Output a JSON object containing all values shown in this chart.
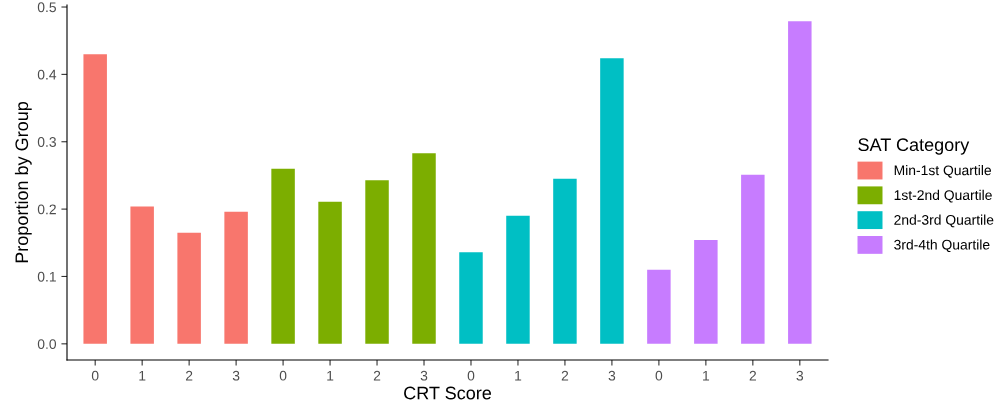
{
  "chart_data": {
    "type": "bar",
    "ylabel": "Proportion by Group",
    "xlabel": "CRT Score",
    "legend_title": "SAT Category",
    "legend": "right",
    "grid": false,
    "categories": [
      "0",
      "1",
      "2",
      "3",
      "0",
      "1",
      "2",
      "3",
      "0",
      "1",
      "2",
      "3",
      "0",
      "1",
      "2",
      "3"
    ],
    "ylim": [
      -0.024,
      0.503
    ],
    "yticks": [
      {
        "value": 0,
        "label": "0.0"
      },
      {
        "value": 0.1,
        "label": "0.1"
      },
      {
        "value": 0.2,
        "label": "0.2"
      },
      {
        "value": 0.3,
        "label": "0.3"
      },
      {
        "value": 0.4,
        "label": "0.4"
      },
      {
        "value": 0.5,
        "label": "0.5"
      }
    ],
    "series": [
      {
        "name": "Min-1st Quartile",
        "color": "#f8766d",
        "values": [
          0.43,
          0.204,
          0.165,
          0.196,
          null,
          null,
          null,
          null,
          null,
          null,
          null,
          null,
          null,
          null,
          null,
          null
        ]
      },
      {
        "name": "1st-2nd Quartile",
        "color": "#7cae00",
        "values": [
          null,
          null,
          null,
          null,
          0.26,
          0.211,
          0.243,
          0.283,
          null,
          null,
          null,
          null,
          null,
          null,
          null,
          null
        ]
      },
      {
        "name": "2nd-3rd Quartile",
        "color": "#00bfc4",
        "values": [
          null,
          null,
          null,
          null,
          null,
          null,
          null,
          null,
          0.136,
          0.19,
          0.245,
          0.424,
          null,
          null,
          null,
          null
        ]
      },
      {
        "name": "3rd-4th Quartile",
        "color": "#c77cff",
        "values": [
          null,
          null,
          null,
          null,
          null,
          null,
          null,
          null,
          null,
          null,
          null,
          null,
          0.11,
          0.154,
          0.251,
          0.479
        ]
      }
    ]
  }
}
